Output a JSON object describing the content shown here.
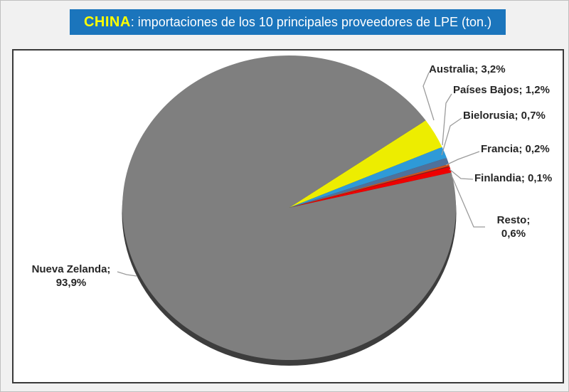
{
  "title": {
    "highlight": "CHINA",
    "rest": ": importaciones de los 10 principales proveedores de LPE (ton.)",
    "banner_color": "#1b75bc",
    "highlight_color": "#ffff00",
    "rest_color": "#ffffff"
  },
  "chart_data": {
    "type": "pie",
    "title": "CHINA: importaciones de los 10 principales proveedores de LPE (ton.)",
    "unit": "%",
    "start_angle_deg": 55,
    "legend_position": "none",
    "labels_style": "callout-labels-with-leader-lines",
    "slices": [
      {
        "name": "Australia",
        "value_pct": 3.2,
        "label": "Australia; 3,2%",
        "color": "#eded00"
      },
      {
        "name": "Países Bajos",
        "value_pct": 1.2,
        "label": "Países Bajos; 1,2%",
        "color": "#2e9ad8"
      },
      {
        "name": "Bielorusia",
        "value_pct": 0.7,
        "label": "Bielorusia; 0,7%",
        "color": "#4f719b"
      },
      {
        "name": "Francia",
        "value_pct": 0.2,
        "label": "Francia; 0,2%",
        "color": "#d0531d"
      },
      {
        "name": "Finlandia",
        "value_pct": 0.1,
        "label": "Finlandia; 0,1%",
        "color": "#8b1a1a"
      },
      {
        "name": "Resto",
        "value_pct": 0.6,
        "label": "Resto; 0,6%",
        "color": "#ee0000"
      },
      {
        "name": "Nueva Zelanda",
        "value_pct": 93.9,
        "label": "Nueva Zelanda; 93,9%",
        "color": "#7f7f7f"
      }
    ],
    "shadow_color": "#3d3d3d",
    "leader_line_color": "#9b9b9b"
  }
}
